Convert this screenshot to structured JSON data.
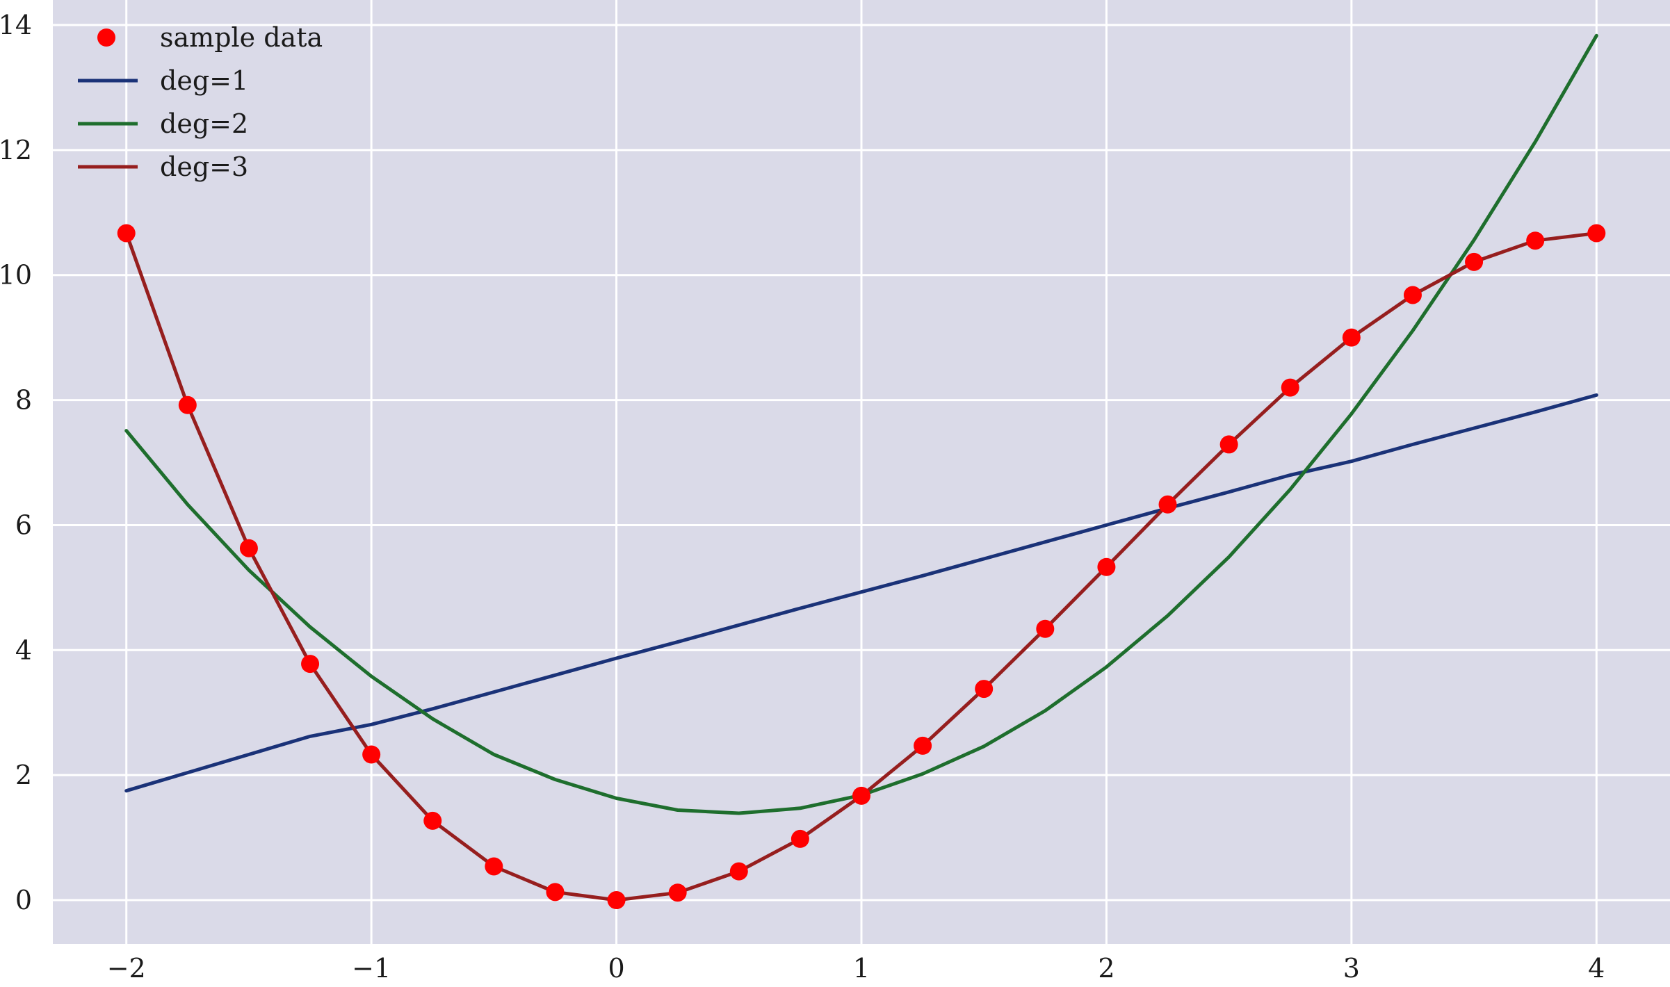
{
  "chart_data": {
    "type": "line",
    "title": "",
    "xlabel": "",
    "ylabel": "",
    "xlim": [
      -2.3,
      4.3
    ],
    "ylim": [
      -0.7,
      14.4
    ],
    "xticks": [
      -2,
      -1,
      0,
      1,
      2,
      3,
      4
    ],
    "xtick_labels": [
      "−2",
      "−1",
      "0",
      "1",
      "2",
      "3",
      "4"
    ],
    "yticks": [
      0,
      2,
      4,
      6,
      8,
      10,
      12,
      14
    ],
    "ytick_labels": [
      "0",
      "2",
      "4",
      "6",
      "8",
      "10",
      "12",
      "14"
    ],
    "grid": true,
    "legend_position": "top-left",
    "colors": {
      "background": "#dadae8",
      "grid": "#ffffff",
      "sample": "#ff0000",
      "deg1": "#1a3278",
      "deg2": "#1e6e2d",
      "deg3": "#961e1e"
    },
    "x": [
      -2,
      -1.75,
      -1.5,
      -1.25,
      -1,
      -0.75,
      -0.5,
      -0.25,
      0,
      0.25,
      0.5,
      0.75,
      1,
      1.25,
      1.5,
      1.75,
      2,
      2.25,
      2.5,
      2.75,
      3,
      3.25,
      3.5,
      3.75,
      4
    ],
    "scatter": {
      "name": "sample data",
      "y": [
        10.67,
        7.92,
        5.63,
        3.78,
        2.33,
        1.27,
        0.54,
        0.13,
        0.0,
        0.12,
        0.46,
        0.98,
        1.67,
        2.47,
        3.38,
        4.34,
        5.33,
        6.33,
        7.29,
        8.2,
        9.0,
        9.68,
        10.21,
        10.55,
        10.67
      ]
    },
    "series": [
      {
        "name": "deg=1",
        "color_key": "deg1",
        "y": [
          1.75,
          2.04,
          2.33,
          2.62,
          2.81,
          3.06,
          3.33,
          3.6,
          3.87,
          4.13,
          4.4,
          4.67,
          4.93,
          5.19,
          5.46,
          5.73,
          6.0,
          6.27,
          6.53,
          6.8,
          7.02,
          7.29,
          7.55,
          7.81,
          8.08
        ]
      },
      {
        "name": "deg=2",
        "color_key": "deg2",
        "y": [
          7.51,
          6.33,
          5.28,
          4.37,
          3.58,
          2.9,
          2.33,
          1.93,
          1.63,
          1.44,
          1.39,
          1.47,
          1.68,
          2.02,
          2.46,
          3.03,
          3.73,
          4.55,
          5.49,
          6.57,
          7.78,
          9.11,
          10.56,
          12.13,
          13.83
        ]
      },
      {
        "name": "deg=3",
        "color_key": "deg3",
        "y": [
          10.67,
          7.92,
          5.63,
          3.78,
          2.33,
          1.27,
          0.54,
          0.13,
          0.0,
          0.12,
          0.46,
          0.98,
          1.67,
          2.47,
          3.38,
          4.34,
          5.33,
          6.33,
          7.29,
          8.2,
          9.0,
          9.68,
          10.21,
          10.55,
          10.67
        ]
      }
    ]
  }
}
